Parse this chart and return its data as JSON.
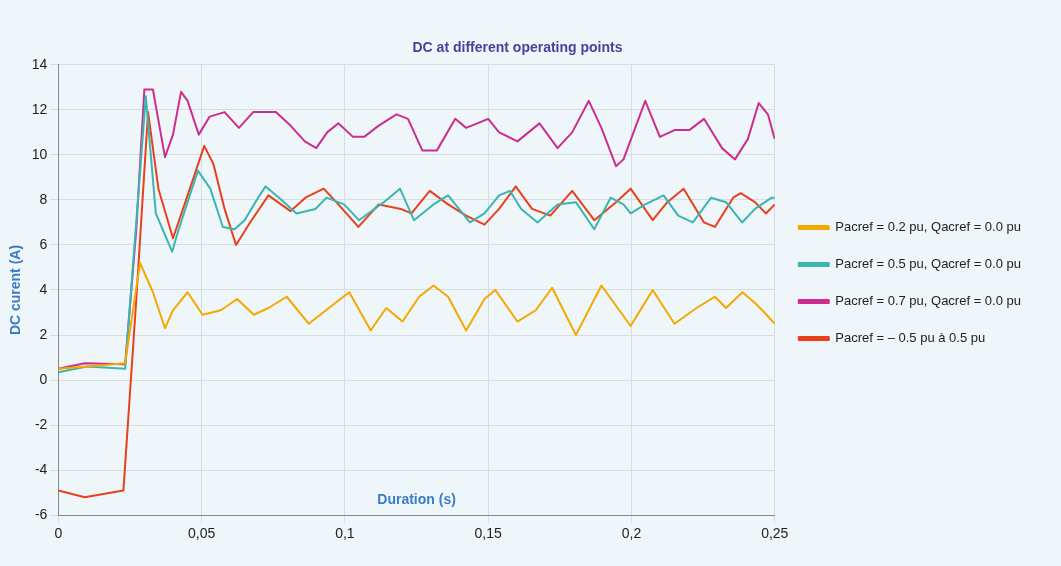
{
  "chart_data": {
    "type": "line",
    "title": "DC at different operating points",
    "xlabel": "Duration (s)",
    "ylabel": "DC curent (A)",
    "xlim": [
      0,
      0.25
    ],
    "ylim": [
      -6,
      14
    ],
    "xticks": [
      0,
      {
        "value": 0.05,
        "label": "0,05"
      },
      {
        "value": 0.1,
        "label": "0,1"
      },
      {
        "value": 0.15,
        "label": "0,15"
      },
      {
        "value": 0.2,
        "label": "0,2"
      },
      {
        "value": 0.25,
        "label": "0,25"
      }
    ],
    "yticks": [
      -6,
      -4,
      -2,
      0,
      2,
      4,
      6,
      8,
      10,
      12,
      14
    ],
    "grid": true,
    "legend": "right",
    "marker": "none",
    "line_style": "solid",
    "series": [
      {
        "name": "Pacref = 0.2 pu, Qacref = 0.0 pu",
        "color": "#f5a800",
        "x": [
          0,
          0.01,
          0.0233,
          0.0285,
          0.033,
          0.0372,
          0.04,
          0.0451,
          0.0503,
          0.0567,
          0.0624,
          0.0682,
          0.0733,
          0.0797,
          0.0874,
          0.0964,
          0.1015,
          0.109,
          0.1144,
          0.1201,
          0.1259,
          0.1309,
          0.136,
          0.1423,
          0.1487,
          0.1525,
          0.1602,
          0.1666,
          0.1723,
          0.1806,
          0.1895,
          0.1997,
          0.2074,
          0.215,
          0.2227,
          0.2291,
          0.233,
          0.2387,
          0.2433,
          0.2464,
          0.25
        ],
        "values": [
          0.5,
          0.6,
          0.75,
          5.2,
          3.9,
          2.3,
          3.1,
          3.9,
          2.9,
          3.1,
          3.6,
          2.9,
          3.2,
          3.7,
          2.5,
          3.4,
          3.9,
          2.2,
          3.2,
          2.6,
          3.7,
          4.2,
          3.7,
          2.2,
          3.6,
          4.0,
          2.6,
          3.1,
          4.1,
          2.0,
          4.2,
          2.4,
          4.0,
          2.5,
          3.2,
          3.7,
          3.2,
          3.9,
          3.4,
          3.0,
          2.5
        ]
      },
      {
        "name": "Pacref = 0.5 pu, Qacref = 0.0 pu",
        "color": "#3bb5b0",
        "x": [
          0,
          0.01,
          0.0233,
          0.0305,
          0.034,
          0.0397,
          0.042,
          0.0487,
          0.053,
          0.0574,
          0.0615,
          0.065,
          0.0697,
          0.0723,
          0.077,
          0.0831,
          0.0897,
          0.0936,
          0.0997,
          0.1049,
          0.1136,
          0.1192,
          0.1241,
          0.1309,
          0.136,
          0.1436,
          0.1487,
          0.1538,
          0.1576,
          0.1615,
          0.1672,
          0.1742,
          0.1806,
          0.187,
          0.1927,
          0.1972,
          0.1997,
          0.2048,
          0.2112,
          0.2163,
          0.2214,
          0.2278,
          0.233,
          0.2386,
          0.2431,
          0.2489,
          0.25
        ],
        "values": [
          0.35,
          0.6,
          0.5,
          12.6,
          7.4,
          5.7,
          6.7,
          9.3,
          8.5,
          6.8,
          6.7,
          7.1,
          8.1,
          8.6,
          8.1,
          7.4,
          7.6,
          8.1,
          7.8,
          7.1,
          7.9,
          8.5,
          7.1,
          7.8,
          8.2,
          7.0,
          7.4,
          8.2,
          8.4,
          7.6,
          7.0,
          7.8,
          7.9,
          6.7,
          8.1,
          7.8,
          7.4,
          7.8,
          8.2,
          7.3,
          7.0,
          8.1,
          7.9,
          7.0,
          7.6,
          8.1,
          8.1
        ]
      },
      {
        "name": "Pacref = 0.7 pu, Qacref = 0.0 pu",
        "color": "#cc2d8f",
        "x": [
          0,
          0.0092,
          0.0233,
          0.0272,
          0.03,
          0.033,
          0.0372,
          0.04,
          0.0428,
          0.0451,
          0.049,
          0.0528,
          0.058,
          0.063,
          0.068,
          0.0759,
          0.081,
          0.086,
          0.09,
          0.0938,
          0.0977,
          0.1028,
          0.1067,
          0.1118,
          0.118,
          0.122,
          0.127,
          0.1321,
          0.1385,
          0.1423,
          0.15,
          0.1538,
          0.1602,
          0.1679,
          0.1742,
          0.1793,
          0.1851,
          0.1895,
          0.1946,
          0.1972,
          0.2048,
          0.2099,
          0.215,
          0.2202,
          0.2253,
          0.2316,
          0.2361,
          0.2406,
          0.2444,
          0.2476,
          0.25
        ],
        "values": [
          0.5,
          0.75,
          0.7,
          6.7,
          12.9,
          12.9,
          9.9,
          10.9,
          12.8,
          12.4,
          10.9,
          11.7,
          11.9,
          11.2,
          11.9,
          11.9,
          11.3,
          10.6,
          10.3,
          11.0,
          11.4,
          10.8,
          10.8,
          11.3,
          11.8,
          11.6,
          10.2,
          10.2,
          11.6,
          11.2,
          11.6,
          11.0,
          10.6,
          11.4,
          10.3,
          11.0,
          12.4,
          11.2,
          9.5,
          9.8,
          12.4,
          10.8,
          11.1,
          11.1,
          11.6,
          10.3,
          9.8,
          10.7,
          12.3,
          11.8,
          10.7
        ]
      },
      {
        "name": "Pacref = – 0.5 pu à 0.5 pu",
        "color": "#e8401c",
        "x": [
          0,
          0.0092,
          0.0227,
          0.0272,
          0.0313,
          0.0349,
          0.04,
          0.0451,
          0.0509,
          0.0541,
          0.058,
          0.062,
          0.0669,
          0.0733,
          0.081,
          0.0862,
          0.0926,
          0.0977,
          0.1047,
          0.1118,
          0.1195,
          0.1232,
          0.1296,
          0.136,
          0.1423,
          0.1487,
          0.1538,
          0.1596,
          0.1653,
          0.1717,
          0.1793,
          0.187,
          0.1946,
          0.1997,
          0.2074,
          0.2125,
          0.2182,
          0.2253,
          0.2291,
          0.2355,
          0.2381,
          0.2431,
          0.2469,
          0.25
        ],
        "values": [
          -4.9,
          -5.2,
          -4.9,
          3.6,
          11.9,
          8.5,
          6.3,
          8.2,
          10.4,
          9.6,
          7.6,
          6.0,
          7.0,
          8.2,
          7.5,
          8.1,
          8.5,
          7.8,
          6.8,
          7.8,
          7.6,
          7.4,
          8.4,
          7.8,
          7.3,
          6.9,
          7.6,
          8.6,
          7.6,
          7.3,
          8.4,
          7.1,
          7.9,
          8.5,
          7.1,
          7.9,
          8.5,
          7.0,
          6.8,
          8.1,
          8.3,
          7.9,
          7.4,
          7.8
        ]
      }
    ]
  }
}
